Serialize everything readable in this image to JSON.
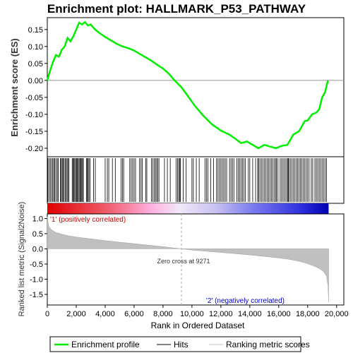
{
  "chart_data": {
    "type": "line",
    "title": "Enrichment plot: HALLMARK_P53_PATHWAY",
    "top_panel": {
      "ylabel": "Enrichment score (ES)",
      "ylim": [
        -0.225,
        0.185
      ],
      "yticks": [
        0.15,
        0.1,
        0.05,
        0.0,
        -0.05,
        -0.1,
        -0.15,
        -0.2
      ],
      "ytick_labels": [
        "0.15",
        "0.10",
        "0.05",
        "0.00",
        "-0.05",
        "-0.10",
        "-0.15",
        "-0.20"
      ],
      "series": [
        {
          "name": "Enrichment profile",
          "color": "#00ee00",
          "x": [
            0,
            200,
            400,
            600,
            800,
            1000,
            1200,
            1400,
            1600,
            1800,
            2000,
            2200,
            2400,
            2600,
            2800,
            3000,
            3300,
            3600,
            4000,
            4400,
            4800,
            5200,
            5600,
            6000,
            6400,
            6800,
            7200,
            7600,
            8000,
            8400,
            8800,
            9271,
            9700,
            10200,
            10800,
            11400,
            12000,
            12600,
            13000,
            13400,
            13800,
            14200,
            14600,
            15000,
            15400,
            15800,
            16200,
            16600,
            17000,
            17400,
            17800,
            18000,
            18300,
            18600,
            18800,
            19000,
            19200,
            19400
          ],
          "y": [
            0.0,
            0.03,
            0.055,
            0.075,
            0.07,
            0.09,
            0.1,
            0.125,
            0.115,
            0.13,
            0.15,
            0.17,
            0.165,
            0.172,
            0.162,
            0.165,
            0.15,
            0.14,
            0.128,
            0.118,
            0.108,
            0.1,
            0.095,
            0.088,
            0.078,
            0.068,
            0.058,
            0.046,
            0.035,
            0.02,
            0.0,
            -0.02,
            -0.045,
            -0.075,
            -0.105,
            -0.13,
            -0.148,
            -0.16,
            -0.172,
            -0.185,
            -0.18,
            -0.19,
            -0.2,
            -0.19,
            -0.195,
            -0.2,
            -0.193,
            -0.19,
            -0.16,
            -0.15,
            -0.12,
            -0.118,
            -0.1,
            -0.095,
            -0.085,
            -0.05,
            -0.035,
            0.0
          ]
        }
      ]
    },
    "bottom_panel": {
      "ylabel": "Ranked list metric (Signal2Noise)",
      "ylim": [
        -1.85,
        1.15
      ],
      "yticks": [
        1.0,
        0.5,
        0.0,
        -0.5,
        -1.0,
        -1.5
      ],
      "ytick_labels": [
        "1.0",
        "0.5",
        "0.0",
        "-0.5",
        "-1.0",
        "-1.5"
      ],
      "metric_curve": {
        "x": [
          0,
          100,
          300,
          600,
          1000,
          1500,
          2000,
          3000,
          4000,
          5000,
          6000,
          7000,
          8000,
          9271,
          10000,
          11000,
          12000,
          13000,
          14000,
          15000,
          16000,
          16500,
          17000,
          17500,
          18000,
          18400,
          18800,
          19100,
          19300,
          19400,
          19450
        ],
        "y": [
          1.05,
          0.75,
          0.62,
          0.54,
          0.48,
          0.43,
          0.39,
          0.33,
          0.27,
          0.22,
          0.17,
          0.12,
          0.07,
          0.0,
          -0.04,
          -0.08,
          -0.12,
          -0.16,
          -0.2,
          -0.25,
          -0.3,
          -0.33,
          -0.37,
          -0.42,
          -0.49,
          -0.56,
          -0.65,
          -0.75,
          -0.9,
          -1.2,
          -1.75
        ]
      },
      "zero_cross_label": "Zero cross at 9271",
      "zero_cross": 9271,
      "pos_label": "'1' (positively correlated)",
      "neg_label": "'2' (negatively correlated)"
    },
    "xlabel": "Rank in Ordered Dataset",
    "xlim": [
      0,
      20500
    ],
    "xticks": [
      0,
      2000,
      4000,
      6000,
      8000,
      10000,
      12000,
      14000,
      16000,
      18000,
      20000
    ],
    "xtick_labels": [
      "0",
      "2,000",
      "4,000",
      "6,000",
      "8,000",
      "10,000",
      "12,000",
      "14,000",
      "16,000",
      "18,000",
      "20,000"
    ],
    "total_genes": 19450,
    "hits": [
      40,
      130,
      210,
      300,
      380,
      450,
      520,
      600,
      690,
      760,
      900,
      960,
      1030,
      1080,
      1150,
      1230,
      1300,
      1370,
      1430,
      1500,
      1720,
      1780,
      1840,
      1900,
      1960,
      2020,
      2080,
      2140,
      2200,
      2260,
      2320,
      2380,
      2440,
      2490,
      2700,
      2760,
      2820,
      2880,
      2960,
      3200,
      3320,
      4000,
      4150,
      4250,
      4500,
      4700,
      5100,
      5200,
      5280,
      5700,
      5800,
      5900,
      6000,
      6100,
      6380,
      6480,
      6560,
      6800,
      6880,
      7200,
      7300,
      7400,
      7480,
      7560,
      7640,
      7720,
      8100,
      8300,
      8500,
      8900,
      9000,
      9080,
      9150,
      9200,
      9400,
      9600,
      10000,
      10100,
      10300,
      10500,
      10900,
      11000,
      11100,
      11300,
      11500,
      11700,
      11800,
      11900,
      12000,
      12100,
      12200,
      12300,
      12400,
      12600,
      12700,
      12800,
      12900,
      13100,
      13200,
      13300,
      13400,
      13500,
      13600,
      13700,
      13900,
      14000,
      14200,
      14400,
      14550,
      14600,
      14700,
      14800,
      14900,
      15000,
      15100,
      15200,
      15300,
      15400,
      15500,
      15600,
      15700,
      15800,
      15850,
      15950,
      16100,
      16200,
      16300,
      16400,
      16500,
      16600,
      16650,
      16700,
      16800,
      16900,
      17000,
      17100,
      17200,
      17300,
      17400,
      17500,
      17600,
      17700,
      17800,
      17900,
      18000,
      18100,
      18250,
      18350,
      18500,
      18600,
      18700,
      18800,
      18900,
      19000,
      19100,
      19200,
      19300
    ],
    "legend": [
      {
        "label": "Enrichment profile",
        "color": "#00ee00"
      },
      {
        "label": "Hits",
        "color": "#000000"
      },
      {
        "label": "Ranking metric scores",
        "color": "#c0c0c0"
      }
    ]
  }
}
